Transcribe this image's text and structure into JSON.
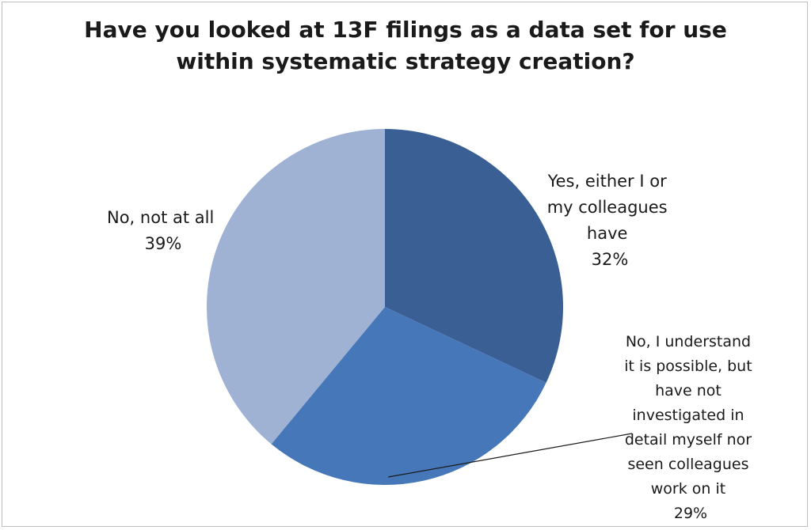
{
  "chart_data": {
    "type": "pie",
    "title_lines": [
      "Have you looked at 13F filings as a data set for use",
      "within systematic strategy creation?"
    ],
    "slices": [
      {
        "label_lines": [
          "Yes, either I or",
          "my colleagues",
          "have"
        ],
        "value": 32,
        "value_label": "32%",
        "color": "#3a5f94"
      },
      {
        "label_lines": [
          "No, I understand",
          "it is possible, but",
          "have not",
          "investigated in",
          "detail myself nor",
          "seen colleagues",
          "work on it"
        ],
        "value": 29,
        "value_label": "29%",
        "color": "#4677b8"
      },
      {
        "label_lines": [
          "No, not at all"
        ],
        "value": 39,
        "value_label": "39%",
        "color": "#9fb2d4"
      }
    ],
    "start_angle": "12 o'clock",
    "direction": "clockwise",
    "legend": "none"
  }
}
